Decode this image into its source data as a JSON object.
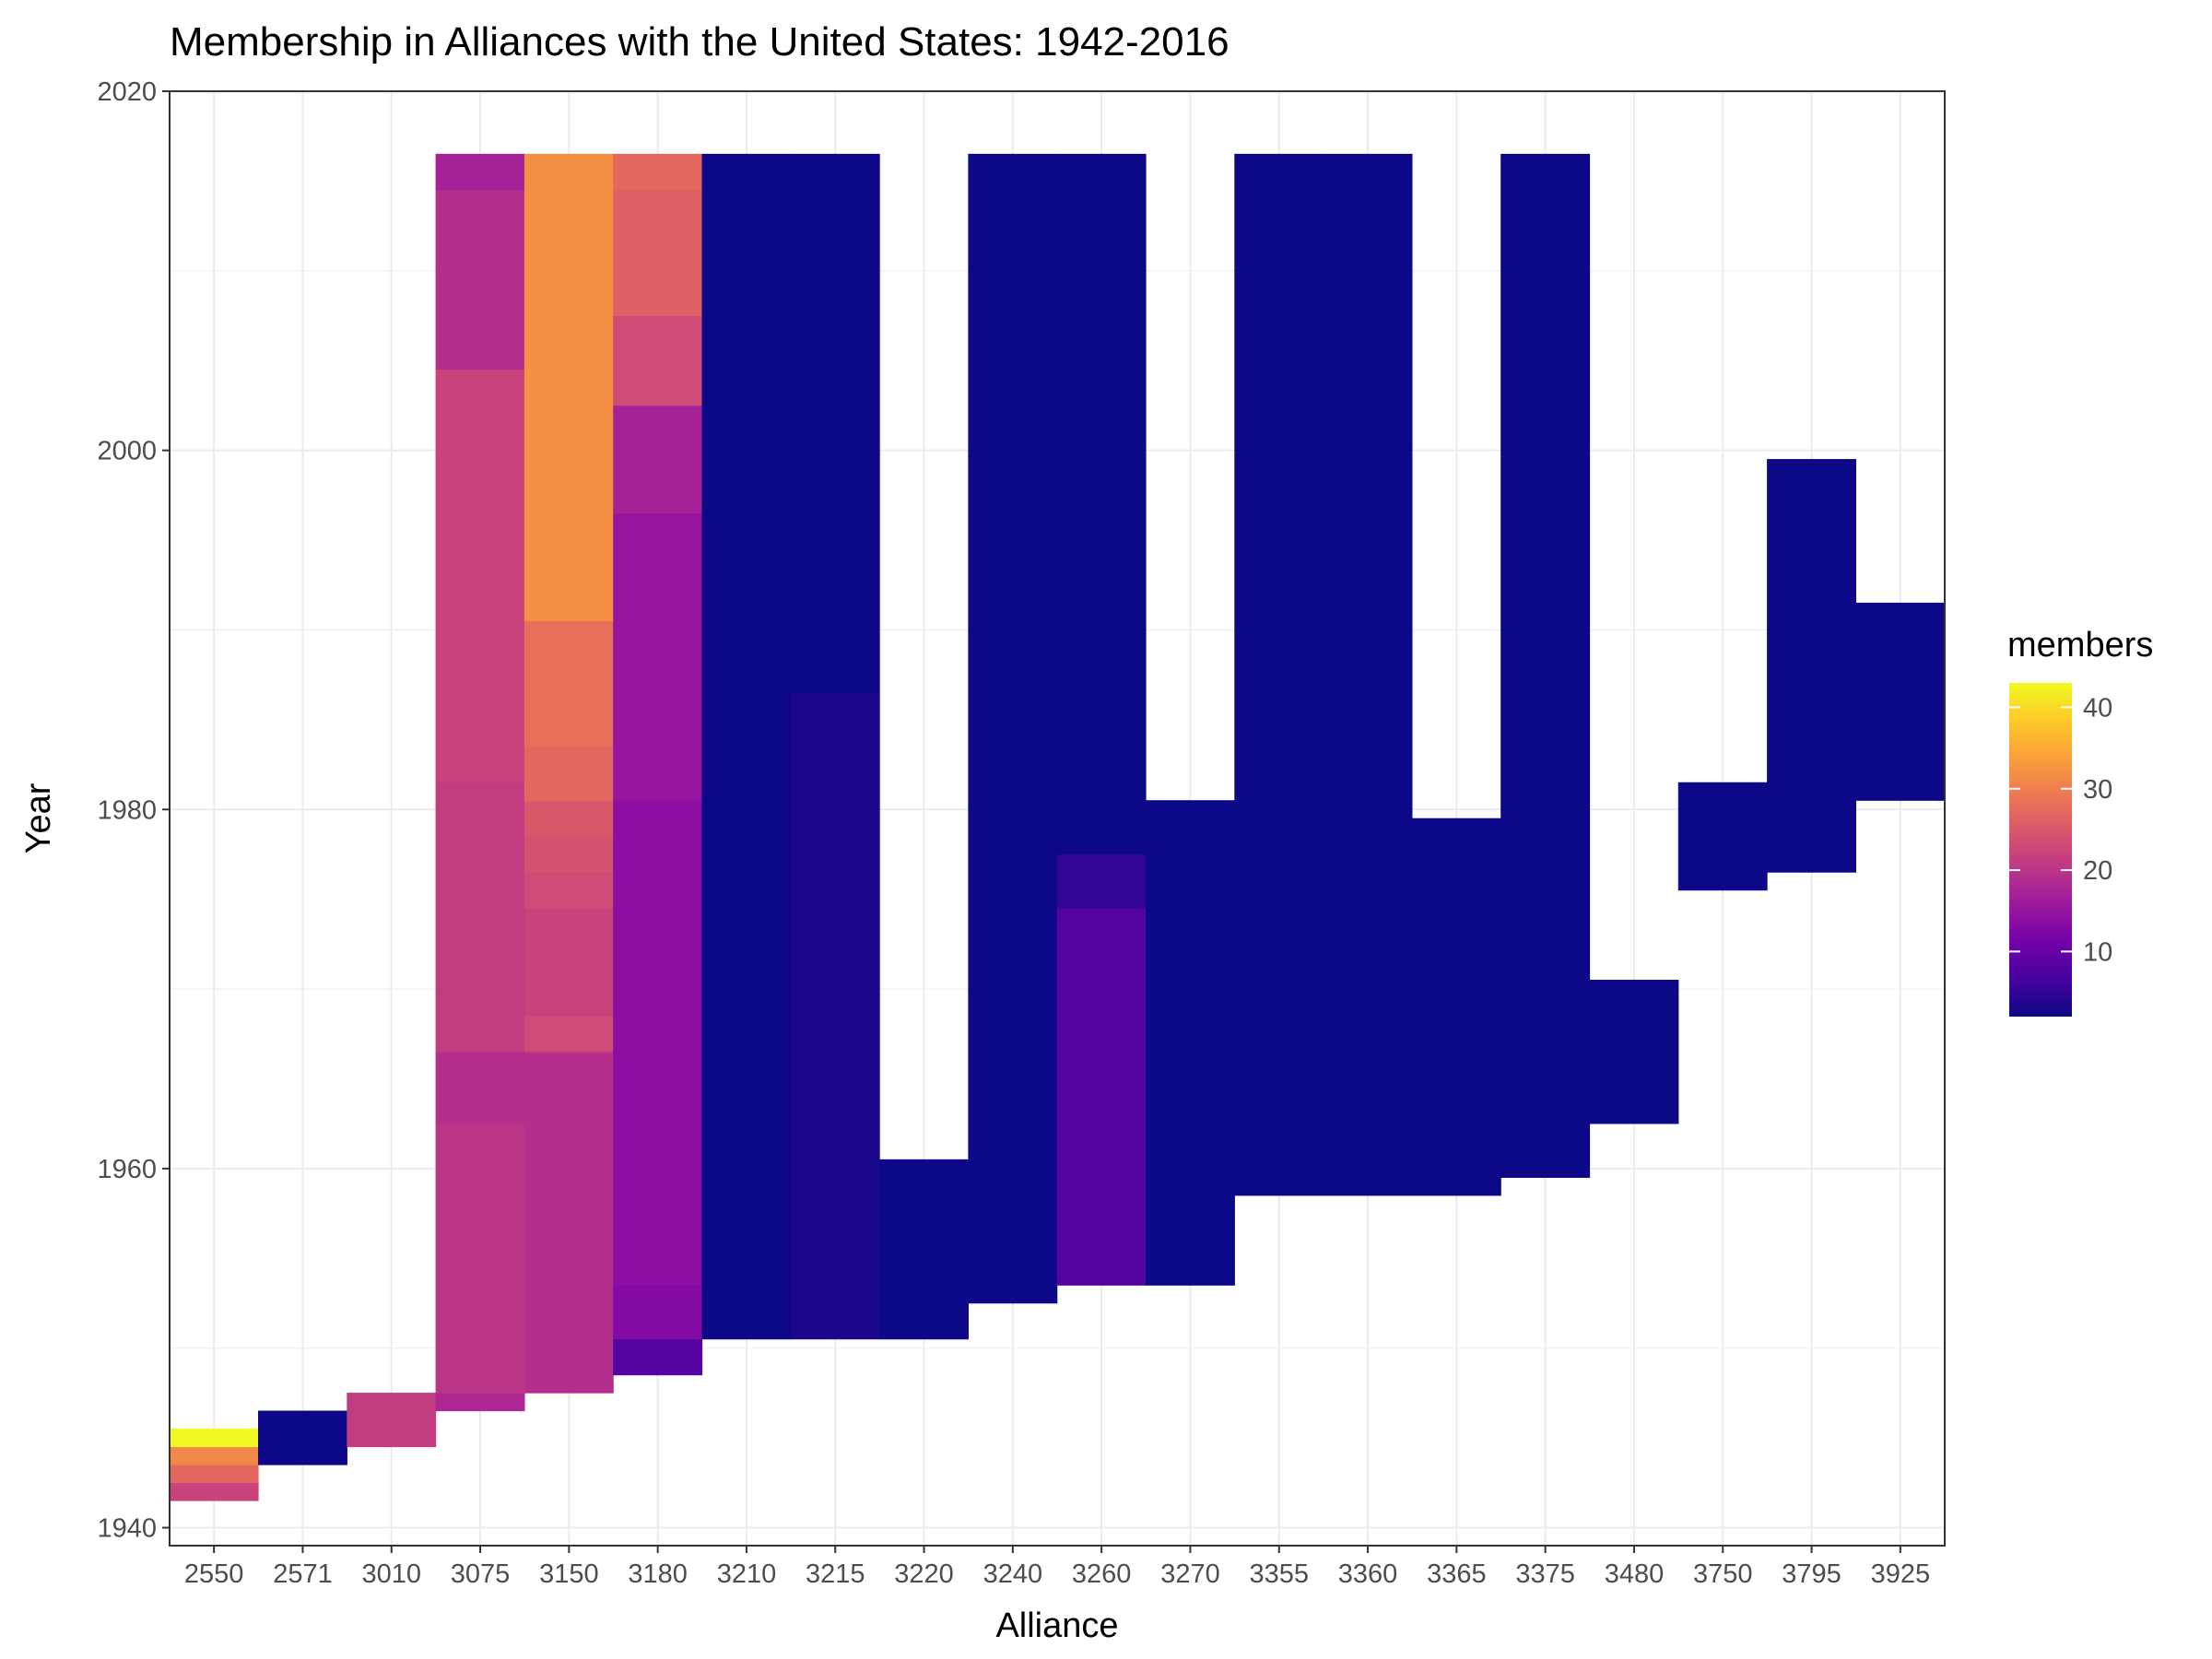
{
  "chart_data": {
    "type": "heatmap",
    "title": "Membership in Alliances with the United States: 1942-2016",
    "xlabel": "Alliance",
    "ylabel": "Year",
    "categories": [
      "2550",
      "2571",
      "3010",
      "3075",
      "3150",
      "3180",
      "3210",
      "3215",
      "3220",
      "3240",
      "3260",
      "3270",
      "3355",
      "3360",
      "3365",
      "3375",
      "3480",
      "3750",
      "3795",
      "3925"
    ],
    "y_ticks": [
      1940,
      1960,
      1980,
      2000,
      2020
    ],
    "ylim": [
      1939,
      2020
    ],
    "grid": true,
    "legend": {
      "title": "members",
      "position": "right",
      "ticks": [
        10,
        20,
        30,
        40
      ],
      "range": [
        2,
        43
      ]
    },
    "colormap": "plasma",
    "series": [
      {
        "alliance": "2550",
        "segments": [
          {
            "start": 1942,
            "end": 1942,
            "value": 22
          },
          {
            "start": 1943,
            "end": 1943,
            "value": 27
          },
          {
            "start": 1944,
            "end": 1944,
            "value": 31
          },
          {
            "start": 1945,
            "end": 1945,
            "value": 43
          }
        ]
      },
      {
        "alliance": "2571",
        "segments": [
          {
            "start": 1944,
            "end": 1946,
            "value": 2
          }
        ]
      },
      {
        "alliance": "3010",
        "segments": [
          {
            "start": 1945,
            "end": 1947,
            "value": 21
          }
        ]
      },
      {
        "alliance": "3075",
        "segments": [
          {
            "start": 1947,
            "end": 1947,
            "value": 18
          },
          {
            "start": 1948,
            "end": 1948,
            "value": 20
          },
          {
            "start": 1949,
            "end": 1962,
            "value": 20
          },
          {
            "start": 1963,
            "end": 1966,
            "value": 19
          },
          {
            "start": 1967,
            "end": 1981,
            "value": 21
          },
          {
            "start": 1982,
            "end": 2004,
            "value": 22
          },
          {
            "start": 2005,
            "end": 2014,
            "value": 19
          },
          {
            "start": 2015,
            "end": 2016,
            "value": 17
          }
        ]
      },
      {
        "alliance": "3150",
        "segments": [
          {
            "start": 1948,
            "end": 1966,
            "value": 19
          },
          {
            "start": 1967,
            "end": 1968,
            "value": 23
          },
          {
            "start": 1969,
            "end": 1974,
            "value": 22
          },
          {
            "start": 1975,
            "end": 1976,
            "value": 23
          },
          {
            "start": 1977,
            "end": 1978,
            "value": 24
          },
          {
            "start": 1979,
            "end": 1980,
            "value": 25
          },
          {
            "start": 1981,
            "end": 1983,
            "value": 27
          },
          {
            "start": 1984,
            "end": 1990,
            "value": 28
          },
          {
            "start": 1991,
            "end": 2016,
            "value": 32
          }
        ]
      },
      {
        "alliance": "3180",
        "segments": [
          {
            "start": 1949,
            "end": 1950,
            "value": 8
          },
          {
            "start": 1951,
            "end": 1953,
            "value": 13
          },
          {
            "start": 1954,
            "end": 1980,
            "value": 14
          },
          {
            "start": 1981,
            "end": 1996,
            "value": 15
          },
          {
            "start": 1997,
            "end": 2002,
            "value": 17
          },
          {
            "start": 2003,
            "end": 2007,
            "value": 23
          },
          {
            "start": 2008,
            "end": 2014,
            "value": 26
          },
          {
            "start": 2015,
            "end": 2016,
            "value": 27
          }
        ]
      },
      {
        "alliance": "3210",
        "segments": [
          {
            "start": 1951,
            "end": 2016,
            "value": 2
          }
        ]
      },
      {
        "alliance": "3215",
        "segments": [
          {
            "start": 1951,
            "end": 1986,
            "value": 3
          },
          {
            "start": 1987,
            "end": 2016,
            "value": 2
          }
        ]
      },
      {
        "alliance": "3220",
        "segments": [
          {
            "start": 1951,
            "end": 1960,
            "value": 2
          }
        ]
      },
      {
        "alliance": "3240",
        "segments": [
          {
            "start": 1953,
            "end": 2016,
            "value": 2
          }
        ]
      },
      {
        "alliance": "3260",
        "segments": [
          {
            "start": 1954,
            "end": 1974,
            "value": 8
          },
          {
            "start": 1975,
            "end": 1977,
            "value": 5
          },
          {
            "start": 1978,
            "end": 2016,
            "value": 2
          }
        ]
      },
      {
        "alliance": "3270",
        "segments": [
          {
            "start": 1954,
            "end": 1980,
            "value": 2
          }
        ]
      },
      {
        "alliance": "3355",
        "segments": [
          {
            "start": 1959,
            "end": 2016,
            "value": 2
          }
        ]
      },
      {
        "alliance": "3360",
        "segments": [
          {
            "start": 1959,
            "end": 2016,
            "value": 2
          }
        ]
      },
      {
        "alliance": "3365",
        "segments": [
          {
            "start": 1959,
            "end": 1979,
            "value": 2
          }
        ]
      },
      {
        "alliance": "3375",
        "segments": [
          {
            "start": 1960,
            "end": 2016,
            "value": 2
          }
        ]
      },
      {
        "alliance": "3480",
        "segments": [
          {
            "start": 1963,
            "end": 1970,
            "value": 2
          }
        ]
      },
      {
        "alliance": "3750",
        "segments": [
          {
            "start": 1976,
            "end": 1981,
            "value": 2
          }
        ]
      },
      {
        "alliance": "3795",
        "segments": [
          {
            "start": 1977,
            "end": 1999,
            "value": 2
          }
        ]
      },
      {
        "alliance": "3925",
        "segments": [
          {
            "start": 1981,
            "end": 1991,
            "value": 2
          }
        ]
      }
    ]
  }
}
